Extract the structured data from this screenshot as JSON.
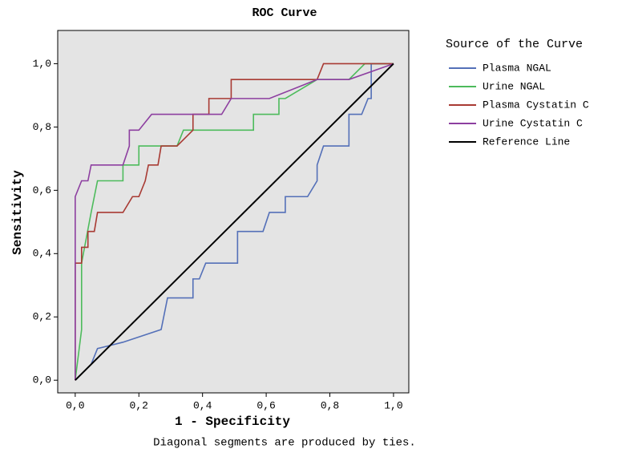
{
  "chart_data": {
    "type": "line",
    "title": "ROC Curve",
    "xlabel": "1 - Specificity",
    "ylabel": "Sensitivity",
    "footnote": "Diagonal segments are produced by ties.",
    "legend_title": "Source of the Curve",
    "xlim": [
      -0.055,
      1.048
    ],
    "ylim": [
      -0.04,
      1.105
    ],
    "xticks": [
      {
        "value": 0,
        "label": "0,0"
      },
      {
        "value": 0.2,
        "label": "0,2"
      },
      {
        "value": 0.4,
        "label": "0,4"
      },
      {
        "value": 0.6,
        "label": "0,6"
      },
      {
        "value": 0.8,
        "label": "0,8"
      },
      {
        "value": 1,
        "label": "1,0"
      }
    ],
    "yticks": [
      {
        "value": 0,
        "label": "0,0"
      },
      {
        "value": 0.2,
        "label": "0,2"
      },
      {
        "value": 0.4,
        "label": "0,4"
      },
      {
        "value": 0.6,
        "label": "0,6"
      },
      {
        "value": 0.8,
        "label": "0,8"
      },
      {
        "value": 1,
        "label": "1,0"
      }
    ],
    "series": [
      {
        "name": "Plasma NGAL",
        "color": "#5470b8",
        "x": [
          0,
          0.05,
          0.07,
          0.15,
          0.27,
          0.29,
          0.37,
          0.37,
          0.39,
          0.41,
          0.51,
          0.51,
          0.59,
          0.61,
          0.66,
          0.66,
          0.73,
          0.76,
          0.76,
          0.78,
          0.86,
          0.86,
          0.9,
          0.92,
          0.93,
          0.93,
          1
        ],
        "values": [
          0,
          0.05,
          0.1,
          0.12,
          0.16,
          0.26,
          0.26,
          0.32,
          0.32,
          0.37,
          0.37,
          0.47,
          0.47,
          0.53,
          0.53,
          0.58,
          0.58,
          0.63,
          0.68,
          0.74,
          0.74,
          0.84,
          0.84,
          0.89,
          0.89,
          1,
          1
        ]
      },
      {
        "name": "Urine NGAL",
        "color": "#4dbb5c",
        "x": [
          0,
          0.02,
          0.02,
          0.05,
          0.07,
          0.15,
          0.15,
          0.2,
          0.2,
          0.32,
          0.34,
          0.56,
          0.56,
          0.64,
          0.64,
          0.66,
          0.76,
          0.86,
          0.91,
          1
        ],
        "values": [
          0,
          0.16,
          0.37,
          0.53,
          0.63,
          0.63,
          0.68,
          0.68,
          0.74,
          0.74,
          0.79,
          0.79,
          0.84,
          0.84,
          0.89,
          0.89,
          0.95,
          0.95,
          1,
          1
        ]
      },
      {
        "name": "Plasma Cystatin C",
        "color": "#a83a33",
        "x": [
          0,
          0,
          0.02,
          0.02,
          0.04,
          0.04,
          0.06,
          0.07,
          0.15,
          0.18,
          0.2,
          0.22,
          0.23,
          0.26,
          0.27,
          0.32,
          0.37,
          0.37,
          0.42,
          0.42,
          0.49,
          0.49,
          0.76,
          0.78,
          1
        ],
        "values": [
          0,
          0.37,
          0.37,
          0.42,
          0.42,
          0.47,
          0.47,
          0.53,
          0.53,
          0.58,
          0.58,
          0.63,
          0.68,
          0.68,
          0.74,
          0.74,
          0.79,
          0.84,
          0.84,
          0.89,
          0.89,
          0.95,
          0.95,
          1,
          1
        ]
      },
      {
        "name": "Urine Cystatin C",
        "color": "#8d3fa0",
        "x": [
          0,
          0,
          0.02,
          0.04,
          0.05,
          0.15,
          0.17,
          0.17,
          0.2,
          0.24,
          0.46,
          0.49,
          0.61,
          0.76,
          0.86,
          1
        ],
        "values": [
          0,
          0.58,
          0.63,
          0.63,
          0.68,
          0.68,
          0.74,
          0.79,
          0.79,
          0.84,
          0.84,
          0.89,
          0.89,
          0.95,
          0.95,
          1
        ]
      },
      {
        "name": "Reference Line",
        "color": "#000000",
        "x": [
          0,
          1
        ],
        "values": [
          0,
          1
        ]
      }
    ]
  }
}
